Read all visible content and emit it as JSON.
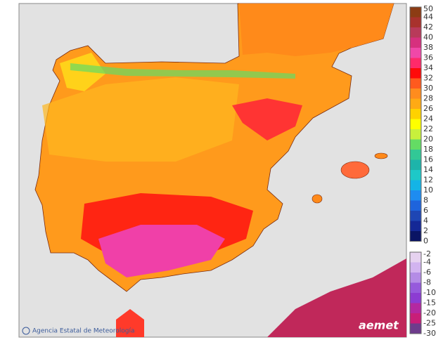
{
  "legend": {
    "warm": {
      "labels": [
        "50",
        "44",
        "42",
        "40",
        "38",
        "36",
        "34",
        "32",
        "30",
        "28",
        "26",
        "24",
        "22",
        "20",
        "18",
        "16",
        "14",
        "12",
        "10",
        "8",
        "6",
        "4",
        "2",
        "0"
      ],
      "colors": [
        "#8c3c14",
        "#a8322d",
        "#b83a5a",
        "#d6307e",
        "#f048a8",
        "#ff2a6a",
        "#ff0a0a",
        "#ff5a1e",
        "#ff8c1e",
        "#ffaa14",
        "#ffd200",
        "#ffff00",
        "#c8f03c",
        "#64dc64",
        "#32c896",
        "#1eb4aa",
        "#1ec8c8",
        "#14b4e6",
        "#1e8cf0",
        "#1e64dc",
        "#1e46b4",
        "#142896",
        "#0a1464"
      ]
    },
    "cold": {
      "labels": [
        "-2",
        "-4",
        "-6",
        "-8",
        "-10",
        "-15",
        "-20",
        "-25",
        "-30"
      ],
      "colors": [
        "#e6d2f0",
        "#d2b4f0",
        "#b48ce6",
        "#965adc",
        "#8c3cd2",
        "#b428a0",
        "#c81e78",
        "#6e3c8c"
      ]
    }
  },
  "attribution": "Agencia Estatal de Meteorología",
  "logo": "aemet"
}
